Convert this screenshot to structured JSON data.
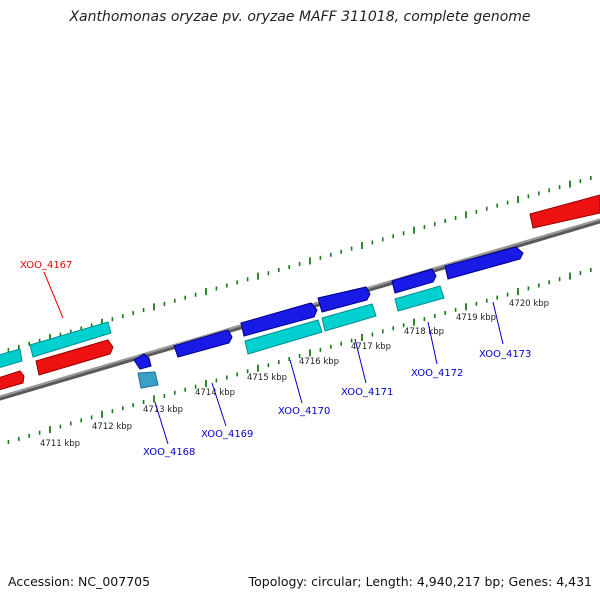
{
  "title": "Xanthomonas oryzae pv. oryzae MAFF 311018, complete genome",
  "footer": {
    "accession": "Accession: NC_007705",
    "summary": "Topology: circular; Length: 4,940,217 bp; Genes: 4,431"
  },
  "colors": {
    "backbone": "#808080",
    "tick": "#1a7a1a",
    "forward_gene": "#00d5d5",
    "reverse_gene": "#ee1111",
    "blue_gene": "#1a1ae6",
    "label_red": "#ee0000",
    "label_blue": "#0000cc"
  },
  "tick_labels": [
    "4711 kbp",
    "4712 kbp",
    "4713 kbp",
    "4714 kbp",
    "4715 kbp",
    "4716 kbp",
    "4717 kbp",
    "4718 kbp",
    "4719 kbp",
    "4720 kbp"
  ],
  "gene_labels": [
    "XOO_4167",
    "XOO_4168",
    "XOO_4169",
    "XOO_4170",
    "XOO_4171",
    "XOO_4172",
    "XOO_4173"
  ]
}
